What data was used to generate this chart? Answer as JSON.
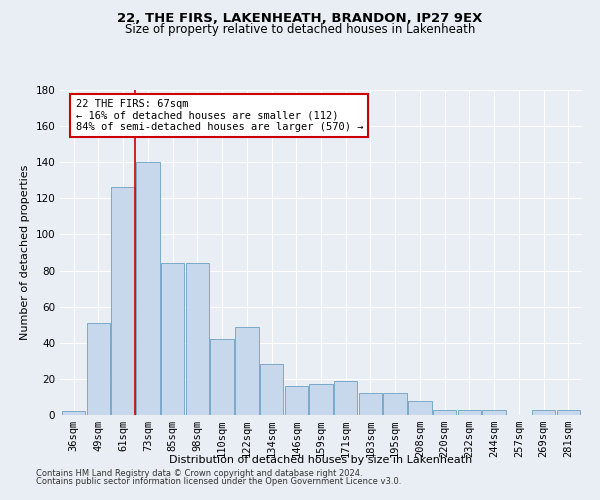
{
  "title1": "22, THE FIRS, LAKENHEATH, BRANDON, IP27 9EX",
  "title2": "Size of property relative to detached houses in Lakenheath",
  "xlabel": "Distribution of detached houses by size in Lakenheath",
  "ylabel": "Number of detached properties",
  "categories": [
    "36sqm",
    "49sqm",
    "61sqm",
    "73sqm",
    "85sqm",
    "98sqm",
    "110sqm",
    "122sqm",
    "134sqm",
    "146sqm",
    "159sqm",
    "171sqm",
    "183sqm",
    "195sqm",
    "208sqm",
    "220sqm",
    "232sqm",
    "244sqm",
    "257sqm",
    "269sqm",
    "281sqm"
  ],
  "values": [
    2,
    51,
    126,
    140,
    84,
    84,
    42,
    49,
    28,
    16,
    17,
    19,
    12,
    12,
    8,
    3,
    3,
    3,
    0,
    3,
    3
  ],
  "bar_color": "#c8d8ec",
  "bar_edgecolor": "#7aaac8",
  "ylim": [
    0,
    180
  ],
  "yticks": [
    0,
    20,
    40,
    60,
    80,
    100,
    120,
    140,
    160,
    180
  ],
  "vline_color": "#cc0000",
  "vline_x_idx": 2.5,
  "annotation_text": "22 THE FIRS: 67sqm\n← 16% of detached houses are smaller (112)\n84% of semi-detached houses are larger (570) →",
  "annotation_box_color": "#ffffff",
  "annotation_box_edgecolor": "#cc0000",
  "footer1": "Contains HM Land Registry data © Crown copyright and database right 2024.",
  "footer2": "Contains public sector information licensed under the Open Government Licence v3.0.",
  "background_color": "#e8eef4",
  "grid_color": "#ffffff",
  "title1_fontsize": 9.5,
  "title2_fontsize": 8.5,
  "xlabel_fontsize": 8.0,
  "ylabel_fontsize": 8.0,
  "tick_fontsize": 7.5,
  "annotation_fontsize": 7.5,
  "footer_fontsize": 6.0
}
